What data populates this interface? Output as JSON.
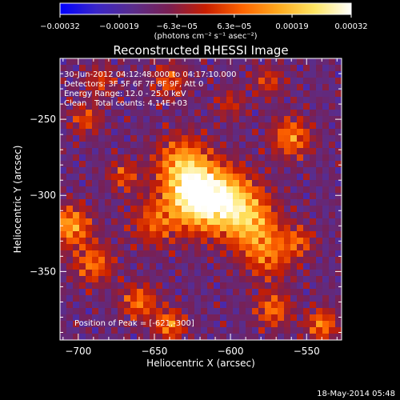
{
  "chart_data": {
    "type": "heatmap",
    "title": "Reconstructed RHESSI Image",
    "xlabel": "Heliocentric X (arcsec)",
    "ylabel": "Heliocentric Y (arcsec)",
    "xlim": [
      -712,
      -527
    ],
    "ylim": [
      -395,
      -210
    ],
    "x_ticks": [
      -700,
      -650,
      -600,
      -550
    ],
    "x_tick_labels": [
      "−700",
      "−650",
      "−600",
      "−550"
    ],
    "y_ticks": [
      -250,
      -300,
      -350
    ],
    "y_tick_labels": [
      "−250",
      "−300",
      "−350"
    ],
    "colorbar": {
      "min": -0.00032,
      "max": 0.00032,
      "ticks": [
        -0.00032,
        -0.00019,
        -6.3e-05,
        6.3e-05,
        0.00019,
        0.00032
      ],
      "tick_labels": [
        "−0.00032",
        "−0.00019",
        "−6.3e−05",
        "6.3e−05",
        "0.00019",
        "0.00032"
      ],
      "unit_label": "(photons cm⁻² s⁻¹ asec⁻²)",
      "colormap": [
        "#0000ff",
        "#3a26c8",
        "#5a2d8c",
        "#7a1f52",
        "#c81e00",
        "#ff6400",
        "#ffaa1e",
        "#ffe664",
        "#ffffff"
      ]
    },
    "annotations": {
      "time_range": "30-Jun-2012 04:12:48.000 to 04:17:10.000",
      "detectors": "Detectors: 3F 5F 6F 7F 8F 9F, Att 0",
      "energy_range": "Energy Range: 12.0 - 25.0 keV",
      "method": "Clean",
      "total_counts": "Total counts: 4.14E+03",
      "peak": "Position of Peak = [-621,-300]"
    },
    "peak_position": [
      -621,
      -300
    ],
    "sources": [
      {
        "x": -622,
        "y": -300,
        "amp": 1.0,
        "w": 14
      },
      {
        "x": -600,
        "y": -305,
        "amp": 0.65,
        "w": 14
      },
      {
        "x": -632,
        "y": -278,
        "amp": 0.5,
        "w": 12
      },
      {
        "x": -585,
        "y": -320,
        "amp": 0.45,
        "w": 12
      },
      {
        "x": -575,
        "y": -340,
        "amp": 0.4,
        "w": 11
      },
      {
        "x": -650,
        "y": -318,
        "amp": 0.35,
        "w": 11
      },
      {
        "x": -705,
        "y": -320,
        "amp": 0.6,
        "w": 9
      },
      {
        "x": -560,
        "y": -262,
        "amp": 0.5,
        "w": 9
      },
      {
        "x": -695,
        "y": -250,
        "amp": 0.35,
        "w": 7
      },
      {
        "x": -690,
        "y": -345,
        "amp": 0.45,
        "w": 9
      },
      {
        "x": -660,
        "y": -370,
        "amp": 0.45,
        "w": 8
      },
      {
        "x": -640,
        "y": -385,
        "amp": 0.5,
        "w": 7
      },
      {
        "x": -572,
        "y": -375,
        "amp": 0.45,
        "w": 8
      },
      {
        "x": -540,
        "y": -385,
        "amp": 0.5,
        "w": 7
      },
      {
        "x": -555,
        "y": -330,
        "amp": 0.35,
        "w": 7
      },
      {
        "x": -670,
        "y": -287,
        "amp": 0.35,
        "w": 7
      },
      {
        "x": -640,
        "y": -225,
        "amp": 0.35,
        "w": 8
      },
      {
        "x": -600,
        "y": -240,
        "amp": 0.25,
        "w": 7
      },
      {
        "x": -575,
        "y": -225,
        "amp": 0.3,
        "w": 7
      },
      {
        "x": -685,
        "y": -225,
        "amp": 0.3,
        "w": 7
      }
    ]
  },
  "footer_date": "18-May-2014 05:48"
}
